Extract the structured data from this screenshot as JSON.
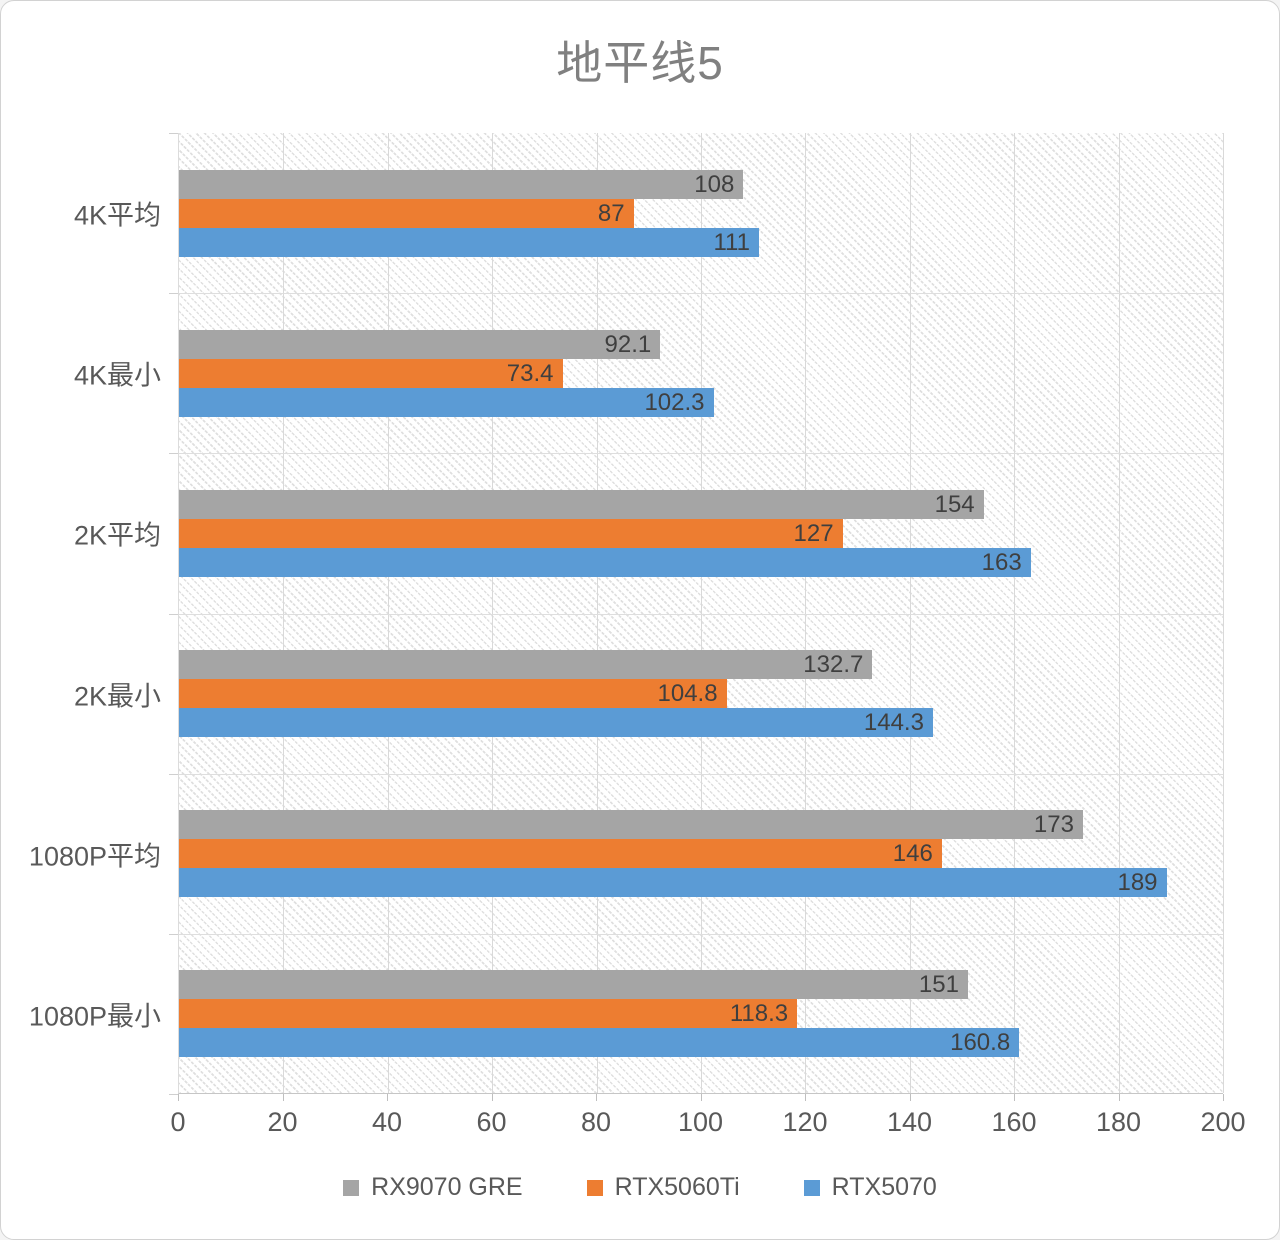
{
  "title": "地平线5",
  "colors": {
    "series_gray": "#a5a5a5",
    "series_orange": "#ed7d31",
    "series_blue": "#5b9bd5",
    "data_label": "#3f3f3f",
    "axis_text": "#595959",
    "title_text": "#808080",
    "gridline": "#d9d9d9"
  },
  "chart_data": {
    "type": "bar",
    "orientation": "horizontal",
    "title": "地平线5",
    "categories": [
      "4K平均",
      "4K最小",
      "2K平均",
      "2K最小",
      "1080P平均",
      "1080P最小"
    ],
    "series": [
      {
        "name": "RX9070 GRE",
        "color": "#a5a5a5",
        "values": [
          108,
          92.1,
          154,
          132.7,
          173,
          151
        ]
      },
      {
        "name": "RTX5060Ti",
        "color": "#ed7d31",
        "values": [
          87,
          73.4,
          127,
          104.8,
          146,
          118.3
        ]
      },
      {
        "name": "RTX5070",
        "color": "#5b9bd5",
        "values": [
          111,
          102.3,
          163,
          144.3,
          189,
          160.8
        ]
      }
    ],
    "xlabel": "",
    "ylabel": "",
    "xlim": [
      0,
      200
    ],
    "x_ticks": [
      0,
      20,
      40,
      60,
      80,
      100,
      120,
      140,
      160,
      180,
      200
    ],
    "grid": true,
    "legend_position": "bottom",
    "plot_background": "diagonal-hatch"
  }
}
